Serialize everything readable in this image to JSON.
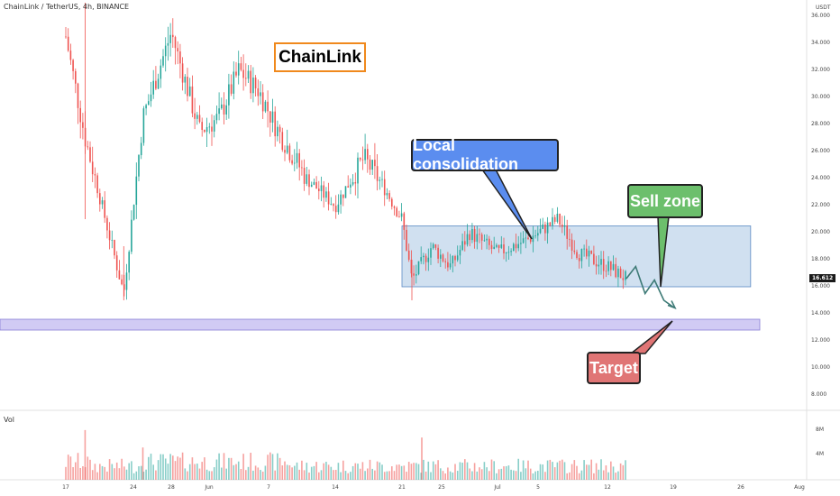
{
  "header": {
    "title": "ChainLink / TetherUS, 4h, BINANCE"
  },
  "volume_label": "Vol",
  "axis_unit": "USDT",
  "current_price": "16.612",
  "title_label": "ChainLink",
  "annotations": {
    "local_consolidation": "Local consolidation",
    "sell_zone": "Sell zone",
    "target": "Target"
  },
  "price_ticks": [
    "36.000",
    "34.000",
    "32.000",
    "30.000",
    "28.000",
    "26.000",
    "24.000",
    "22.000",
    "20.000",
    "18.000",
    "16.000",
    "14.000",
    "12.000",
    "10.000",
    "8.000"
  ],
  "volume_ticks": [
    "8M",
    "4M"
  ],
  "date_ticks": [
    "17",
    "24",
    "28",
    "Jun",
    "7",
    "14",
    "21",
    "25",
    "Jul",
    "5",
    "12",
    "19",
    "26",
    "Aug"
  ],
  "colors": {
    "up": "#26a69a",
    "down": "#ef5350",
    "consolidation_zone": "#a9c7e4",
    "target_zone": "#c9c2f2",
    "projection": "#3d7a76",
    "title_border": "#f0891d"
  },
  "chart_data": {
    "type": "candlestick",
    "title": "ChainLink / TetherUS, 4h, BINANCE",
    "xlabel": "",
    "ylabel": "USDT",
    "ylim": [
      6.5,
      36.5
    ],
    "grid": false,
    "x": [
      "17",
      "24",
      "28",
      "Jun",
      "7",
      "14",
      "21",
      "25",
      "Jul",
      "5",
      "12",
      "19",
      "26",
      "Aug"
    ],
    "series": [
      {
        "name": "price path",
        "values": [
          {
            "date": "May 17",
            "close": 34.5
          },
          {
            "date": "May 19",
            "close": 27.0
          },
          {
            "date": "May 23",
            "close": 15.5
          },
          {
            "date": "May 25",
            "close": 28.5
          },
          {
            "date": "May 28",
            "close": 34.8
          },
          {
            "date": "May 31",
            "close": 27.5
          },
          {
            "date": "Jun 2",
            "close": 28.5
          },
          {
            "date": "Jun 4",
            "close": 32.0
          },
          {
            "date": "Jun 6",
            "close": 30.5
          },
          {
            "date": "Jun 8",
            "close": 27.5
          },
          {
            "date": "Jun 11",
            "close": 24.0
          },
          {
            "date": "Jun 14",
            "close": 22.0
          },
          {
            "date": "Jun 17",
            "close": 25.5
          },
          {
            "date": "Jun 19",
            "close": 23.5
          },
          {
            "date": "Jun 21",
            "close": 21.0
          },
          {
            "date": "Jun 22",
            "close": 16.5
          },
          {
            "date": "Jun 24",
            "close": 19.0
          },
          {
            "date": "Jun 26",
            "close": 17.5
          },
          {
            "date": "Jun 28",
            "close": 20.0
          },
          {
            "date": "Jul 1",
            "close": 18.5
          },
          {
            "date": "Jul 4",
            "close": 19.5
          },
          {
            "date": "Jul 7",
            "close": 21.0
          },
          {
            "date": "Jul 9",
            "close": 18.5
          },
          {
            "date": "Jul 12",
            "close": 17.5
          },
          {
            "date": "Jul 14",
            "close": 16.6
          }
        ]
      },
      {
        "name": "projection",
        "values": [
          {
            "date": "Jul 14",
            "close": 16.6
          },
          {
            "date": "Jul 15",
            "close": 17.5
          },
          {
            "date": "Jul 16",
            "close": 15.5
          },
          {
            "date": "Jul 17",
            "close": 16.5
          },
          {
            "date": "Jul 18",
            "close": 15.0
          },
          {
            "date": "Jul 19",
            "close": 14.5
          }
        ]
      }
    ],
    "zones": [
      {
        "name": "consolidation",
        "from": "Jun 21",
        "to": "Jul 27",
        "low": 16.0,
        "high": 20.5
      },
      {
        "name": "target",
        "low": 12.8,
        "high": 13.6
      }
    ],
    "volume_ylim": [
      0,
      9
    ]
  }
}
